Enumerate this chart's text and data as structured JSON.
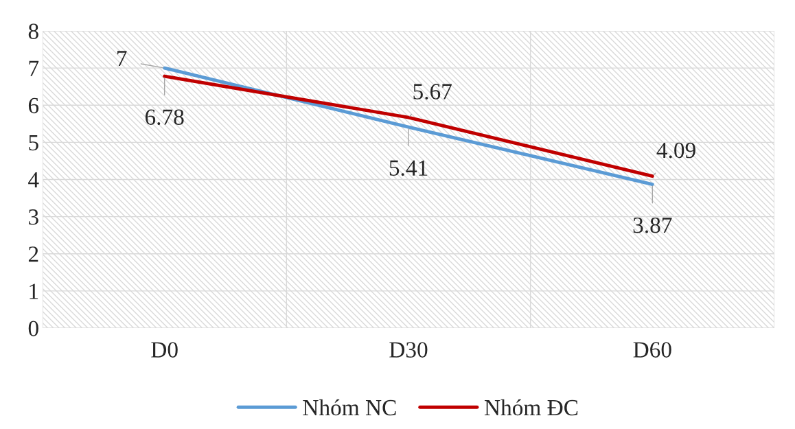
{
  "chart_data": {
    "type": "line",
    "categories": [
      "D0",
      "D30",
      "D60"
    ],
    "series": [
      {
        "name": "Nhóm NC",
        "color": "#5b9bd5",
        "values": [
          7,
          5.41,
          3.87
        ]
      },
      {
        "name": "Nhóm ĐC",
        "color": "#c00000",
        "values": [
          6.78,
          5.67,
          4.09
        ]
      }
    ],
    "ylim": [
      0,
      8
    ],
    "yticks": [
      0,
      1,
      2,
      3,
      4,
      5,
      6,
      7,
      8
    ],
    "grid": true,
    "legend": "bottom",
    "data_labels": true,
    "line_style": "solid"
  }
}
